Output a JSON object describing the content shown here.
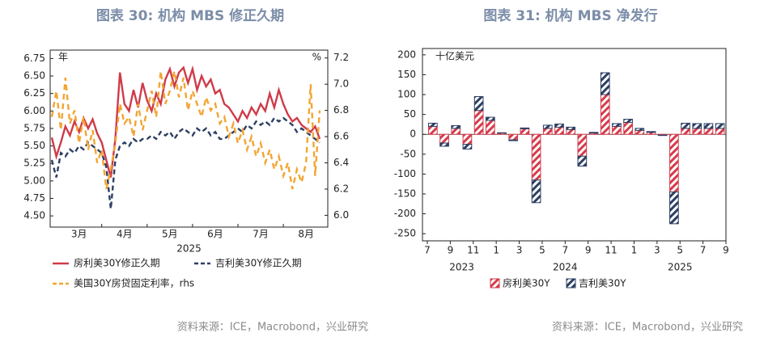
{
  "chart_data": [
    {
      "type": "line",
      "title": "图表 30: 机构 MBS 修正久期",
      "y_unit": "年",
      "y2_unit": "%",
      "xlabel": "2025",
      "source": "资料来源：ICE，Macrobond，兴业研究",
      "categories": [
        null,
        null,
        null,
        null,
        null,
        null,
        "3月",
        null,
        null,
        null,
        null,
        null,
        null,
        null,
        null,
        null,
        "4月",
        null,
        null,
        null,
        null,
        null,
        null,
        null,
        null,
        null,
        "5月",
        null,
        null,
        null,
        null,
        null,
        null,
        null,
        null,
        null,
        "6月",
        null,
        null,
        null,
        null,
        null,
        null,
        null,
        null,
        null,
        "7月",
        null,
        null,
        null,
        null,
        null,
        null,
        null,
        null,
        null,
        "8月",
        null,
        null,
        null
      ],
      "series": [
        {
          "name": "房利美30Y修正久期",
          "color": "#cf3b49",
          "dash": "solid",
          "values": [
            5.62,
            5.35,
            5.55,
            5.78,
            5.65,
            5.85,
            5.7,
            5.9,
            5.75,
            5.88,
            5.68,
            5.55,
            5.3,
            5.05,
            5.6,
            6.55,
            6.1,
            6.0,
            6.3,
            6.05,
            6.4,
            6.15,
            6.0,
            6.25,
            6.1,
            6.45,
            6.6,
            6.35,
            6.55,
            6.62,
            6.4,
            6.6,
            6.3,
            6.5,
            6.35,
            6.45,
            6.25,
            6.3,
            6.1,
            6.05,
            5.95,
            5.85,
            6.0,
            5.9,
            6.05,
            5.95,
            6.1,
            6.0,
            6.25,
            6.05,
            6.3,
            6.1,
            5.95,
            5.85,
            5.9,
            5.8,
            5.75,
            5.7,
            5.78,
            5.6
          ]
        },
        {
          "name": "吉利美30Y修正久期",
          "color": "#2d3f63",
          "dash": "dashed",
          "values": [
            5.3,
            5.05,
            5.4,
            5.35,
            5.45,
            5.4,
            5.5,
            5.45,
            5.55,
            5.5,
            5.45,
            5.4,
            5.2,
            4.6,
            5.3,
            5.5,
            5.55,
            5.5,
            5.6,
            5.55,
            5.6,
            5.6,
            5.65,
            5.6,
            5.7,
            5.65,
            5.7,
            5.6,
            5.7,
            5.75,
            5.7,
            5.65,
            5.75,
            5.7,
            5.75,
            5.65,
            5.7,
            5.6,
            5.6,
            5.65,
            5.7,
            5.75,
            5.7,
            5.8,
            5.75,
            5.85,
            5.8,
            5.85,
            5.8,
            5.9,
            5.85,
            5.9,
            5.85,
            5.8,
            5.7,
            5.75,
            5.7,
            5.65,
            5.6,
            5.55
          ]
        },
        {
          "name": "美国30Y房贷固定利率，rhs",
          "color": "#f2a533",
          "dash": "dashed",
          "axis": "y2",
          "values": [
            6.75,
            6.95,
            6.65,
            7.05,
            6.7,
            6.8,
            6.55,
            6.75,
            6.5,
            6.65,
            6.4,
            6.5,
            6.2,
            6.35,
            6.55,
            6.85,
            6.7,
            6.75,
            6.6,
            6.85,
            6.65,
            6.8,
            6.95,
            6.75,
            7.1,
            6.85,
            6.95,
            7.1,
            6.9,
            7.05,
            6.8,
            6.95,
            6.85,
            6.75,
            6.9,
            6.8,
            6.85,
            6.7,
            6.75,
            6.6,
            6.7,
            6.55,
            6.65,
            6.5,
            6.6,
            6.45,
            6.55,
            6.4,
            6.5,
            6.35,
            6.45,
            6.3,
            6.4,
            6.2,
            6.35,
            6.25,
            6.4,
            7.0,
            6.3,
            6.8
          ]
        }
      ],
      "ylim": [
        4.34,
        6.87
      ],
      "yticks": [
        6.75,
        {
          "value": 6.5,
          "label": "6.50"
        },
        6.25,
        {
          "value": 6.0,
          "label": "6.00"
        },
        5.75,
        {
          "value": 5.5,
          "label": "5.50"
        },
        5.25,
        {
          "value": 5.0,
          "label": "5.00"
        },
        4.75,
        {
          "value": 4.5,
          "label": "4.50"
        }
      ],
      "y2lim": [
        5.91,
        7.26
      ],
      "y2ticks": [
        7.2,
        {
          "value": 7.0,
          "label": "7.0"
        },
        6.8,
        6.6,
        6.4,
        6.2,
        {
          "value": 6.0,
          "label": "6.0"
        }
      ],
      "grid": false
    },
    {
      "type": "bar",
      "title": "图表 31: 机构 MBS 净发行",
      "y_unit": "十亿美元",
      "years": [
        "2023",
        "2024",
        "2025"
      ],
      "source": "资料来源：ICE，Macrobond，兴业研究",
      "stacked": true,
      "hatch": true,
      "categories": [
        "7",
        null,
        "9",
        null,
        "11",
        null,
        "1",
        null,
        "3",
        null,
        "5",
        null,
        "7",
        null,
        "9",
        null,
        "11",
        null,
        "1",
        null,
        "3",
        null,
        "5",
        null,
        "7",
        null,
        "9"
      ],
      "series": [
        {
          "name": "房利美30Y",
          "color": "#d63b4b",
          "values": [
            20,
            -22,
            15,
            -25,
            60,
            35,
            3,
            -14,
            14,
            -115,
            15,
            18,
            12,
            -55,
            3,
            100,
            20,
            30,
            10,
            5,
            -2,
            -145,
            15,
            15,
            15,
            15,
            null
          ]
        },
        {
          "name": "吉利美30Y",
          "color": "#2d3f63",
          "values": [
            8,
            -8,
            7,
            -12,
            35,
            8,
            1,
            -2,
            2,
            -57,
            8,
            8,
            6,
            -25,
            2,
            55,
            7,
            8,
            5,
            2,
            -1,
            -80,
            13,
            12,
            12,
            12,
            null
          ]
        }
      ],
      "ylim": [
        -268,
        216
      ],
      "yticks": [
        200,
        150,
        100,
        50,
        0,
        -50,
        -100,
        -150,
        -200,
        -250
      ],
      "grid": false
    }
  ]
}
